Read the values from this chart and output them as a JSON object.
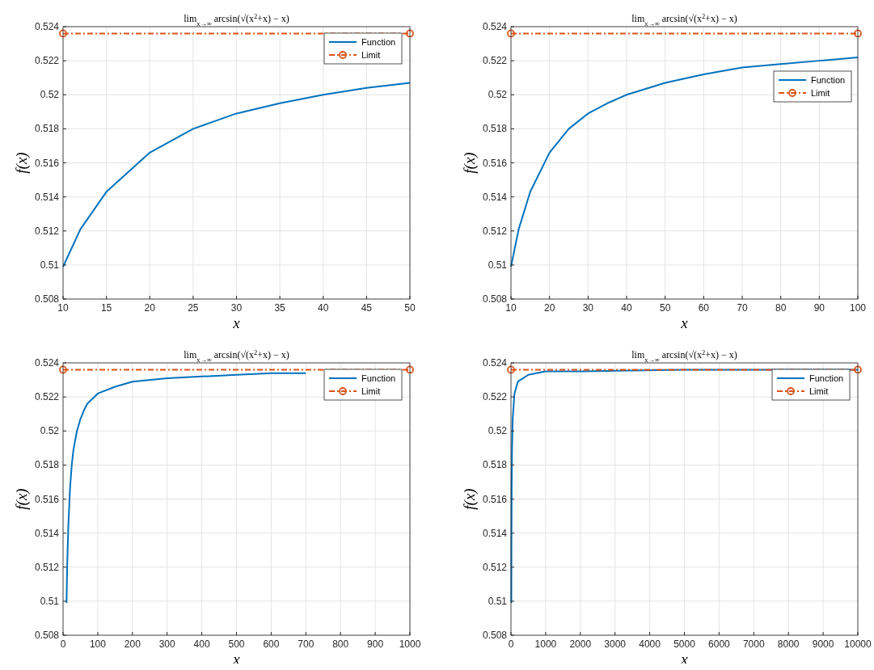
{
  "chart_data": [
    {
      "type": "line",
      "title": "lim$_{x→∞}$ arcsin(√(x$^{2}$+x) − x)",
      "xlabel": "x",
      "ylabel": "f(x)",
      "xlim": [
        10,
        50
      ],
      "xticks": [
        10,
        15,
        20,
        25,
        30,
        35,
        40,
        45,
        50
      ],
      "ylim": [
        0.508,
        0.524
      ],
      "yticks": [
        0.508,
        0.51,
        0.512,
        0.514,
        0.516,
        0.518,
        0.52,
        0.522,
        0.524
      ],
      "grid": true,
      "legend": "top right",
      "series": [
        {
          "name": "Function",
          "color": "#0072bd",
          "marker": "none",
          "line_style": "solid",
          "x": [
            10,
            12,
            15,
            20,
            25,
            30,
            35,
            40,
            45,
            50
          ],
          "values": [
            0.5099,
            0.5121,
            0.5143,
            0.5166,
            0.518,
            0.5189,
            0.5195,
            0.52,
            0.5204,
            0.5207
          ]
        },
        {
          "name": "Limit",
          "color": "#d95319",
          "marker": "circle",
          "line_style": "dashed",
          "x": [
            10,
            50
          ],
          "values": [
            0.5236,
            0.5236
          ]
        }
      ]
    },
    {
      "type": "line",
      "title": "lim$_{x→∞}$ arcsin(√(x$^{2}$+x) − x)",
      "xlabel": "x",
      "ylabel": "f(x)",
      "xlim": [
        10,
        100
      ],
      "xticks": [
        10,
        20,
        30,
        40,
        50,
        60,
        70,
        80,
        90,
        100
      ],
      "ylim": [
        0.508,
        0.524
      ],
      "yticks": [
        0.508,
        0.51,
        0.512,
        0.514,
        0.516,
        0.518,
        0.52,
        0.522,
        0.524
      ],
      "grid": true,
      "legend": "right",
      "series": [
        {
          "name": "Function",
          "color": "#0072bd",
          "marker": "none",
          "line_style": "solid",
          "x": [
            10,
            12,
            15,
            20,
            25,
            30,
            35,
            40,
            50,
            60,
            70,
            80,
            90,
            100
          ],
          "values": [
            0.5099,
            0.5121,
            0.5143,
            0.5166,
            0.518,
            0.5189,
            0.5195,
            0.52,
            0.5207,
            0.5212,
            0.5216,
            0.5218,
            0.522,
            0.5222
          ]
        },
        {
          "name": "Limit",
          "color": "#d95319",
          "marker": "circle",
          "line_style": "dashed",
          "x": [
            10,
            100
          ],
          "values": [
            0.5236,
            0.5236
          ]
        }
      ]
    },
    {
      "type": "line",
      "title": "lim$_{x→∞}$ arcsin(√(x$^{2}$+x) − x)",
      "xlabel": "x",
      "ylabel": "f(x)",
      "xlim": [
        0,
        1000
      ],
      "xticks": [
        0,
        100,
        200,
        300,
        400,
        500,
        600,
        700,
        800,
        900,
        1000
      ],
      "ylim": [
        0.508,
        0.524
      ],
      "yticks": [
        0.508,
        0.51,
        0.512,
        0.514,
        0.516,
        0.518,
        0.52,
        0.522,
        0.524
      ],
      "grid": true,
      "legend": "top right",
      "series": [
        {
          "name": "Function",
          "color": "#0072bd",
          "marker": "none",
          "line_style": "solid",
          "x": [
            10,
            12,
            15,
            20,
            25,
            30,
            40,
            50,
            60,
            70,
            80,
            100,
            150,
            200,
            300,
            400,
            500,
            600,
            700
          ],
          "values": [
            0.5099,
            0.5121,
            0.5143,
            0.5166,
            0.518,
            0.5189,
            0.52,
            0.5207,
            0.5212,
            0.5216,
            0.5218,
            0.5222,
            0.5226,
            0.5229,
            0.5231,
            0.5232,
            0.5233,
            0.5234,
            0.5234
          ]
        },
        {
          "name": "Limit",
          "color": "#d95319",
          "marker": "circle",
          "line_style": "dashed",
          "x": [
            0,
            1000
          ],
          "values": [
            0.5236,
            0.5236
          ]
        }
      ]
    },
    {
      "type": "line",
      "title": "lim$_{x→∞}$ arcsin(√(x$^{2}$+x) − x)",
      "xlabel": "x",
      "ylabel": "f(x)",
      "xlim": [
        0,
        10000
      ],
      "xticks": [
        0,
        1000,
        2000,
        3000,
        4000,
        5000,
        6000,
        7000,
        8000,
        9000,
        10000
      ],
      "ylim": [
        0.508,
        0.524
      ],
      "yticks": [
        0.508,
        0.51,
        0.512,
        0.514,
        0.516,
        0.518,
        0.52,
        0.522,
        0.524
      ],
      "grid": true,
      "legend": "top right",
      "series": [
        {
          "name": "Function",
          "color": "#0072bd",
          "marker": "none",
          "line_style": "solid",
          "x": [
            10,
            15,
            20,
            30,
            50,
            100,
            200,
            500,
            1000,
            2000,
            5000,
            10000
          ],
          "values": [
            0.5099,
            0.5143,
            0.5166,
            0.5189,
            0.5207,
            0.5222,
            0.5229,
            0.5233,
            0.5235,
            0.5235,
            0.5236,
            0.5236
          ]
        },
        {
          "name": "Limit",
          "color": "#d95319",
          "marker": "circle",
          "line_style": "dashed",
          "x": [
            0,
            10000
          ],
          "values": [
            0.5236,
            0.5236
          ]
        }
      ]
    }
  ]
}
